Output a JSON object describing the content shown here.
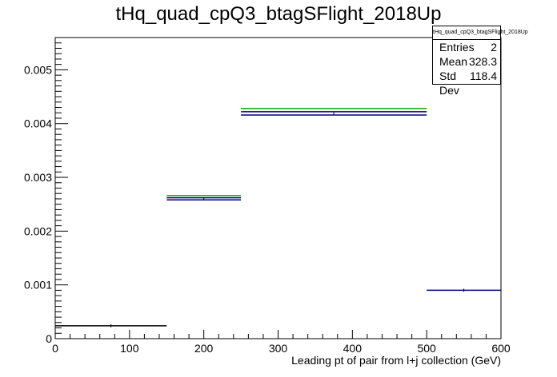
{
  "chart_data": {
    "type": "histogram",
    "title": "tHq_quad_cpQ3_btagSFlight_2018Up",
    "xlabel": "Leading pt of pair from l+j collection (GeV)",
    "ylabel": "",
    "xlim": [
      0,
      600
    ],
    "ylim": [
      0,
      0.0056
    ],
    "x_ticks": [
      "0",
      "100",
      "200",
      "300",
      "400",
      "500",
      "600"
    ],
    "y_ticks": [
      "0",
      "0.001",
      "0.002",
      "0.003",
      "0.004",
      "0.005"
    ],
    "bins": [
      {
        "x0": 0,
        "x1": 150,
        "value": 0.00024
      },
      {
        "x0": 150,
        "x1": 250,
        "value": 0.0026
      },
      {
        "x0": 250,
        "x1": 500,
        "value": 0.00419
      },
      {
        "x0": 500,
        "x1": 600,
        "value": 0.0009
      }
    ],
    "bands": [
      {
        "bin": 0,
        "color": "#000000",
        "values": [
          0.00024
        ]
      },
      {
        "bin": 1,
        "color": "#000080",
        "values": [
          0.00258,
          0.00262
        ]
      },
      {
        "bin": 1,
        "color": "#00aa00",
        "values": [
          0.00266
        ]
      },
      {
        "bin": 2,
        "color": "#000080",
        "values": [
          0.00416,
          0.00422
        ]
      },
      {
        "bin": 2,
        "color": "#00aa00",
        "values": [
          0.00428
        ]
      },
      {
        "bin": 3,
        "color": "#000080",
        "values": [
          0.0009
        ]
      }
    ],
    "grid": false,
    "legend": "none",
    "stats": {
      "name": "tHq_quad_cpQ3_btagSFlight_2018Up",
      "entries_label": "Entries",
      "entries": "2",
      "mean_label": "Mean",
      "mean": "328.3",
      "stddev_label": "Std Dev",
      "stddev": "118.4"
    }
  }
}
